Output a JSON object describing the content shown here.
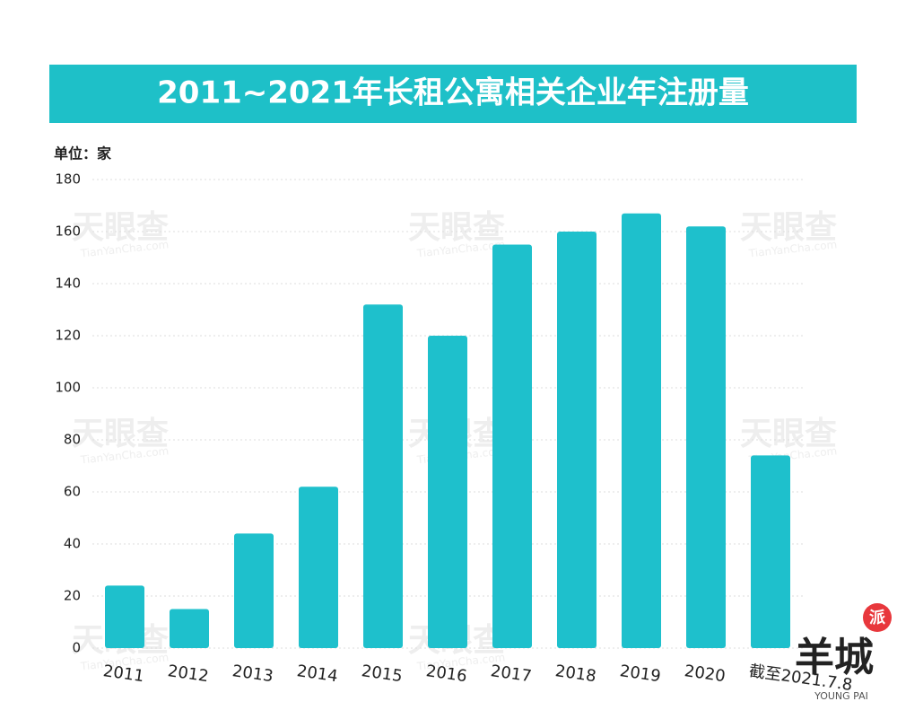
{
  "chart_data": {
    "type": "bar",
    "title": "2011~2021年长租公寓相关企业年注册量",
    "unit_label": "单位：家",
    "categories": [
      "2011",
      "2012",
      "2013",
      "2014",
      "2015",
      "2016",
      "2017",
      "2018",
      "2019",
      "2020",
      "截至2021.7.8"
    ],
    "values": [
      24,
      15,
      44,
      62,
      132,
      120,
      155,
      160,
      167,
      162,
      74
    ],
    "color": "#1ec0cc",
    "ylim": [
      0,
      180
    ],
    "yticks": [
      0,
      20,
      40,
      60,
      80,
      100,
      120,
      140,
      160,
      180
    ],
    "grid": true,
    "watermark": {
      "brand": "天眼查",
      "url": "TianYanCha.com"
    },
    "logo": {
      "name": "羊城",
      "badge": "派",
      "sub": "YOUNG PAI"
    }
  }
}
